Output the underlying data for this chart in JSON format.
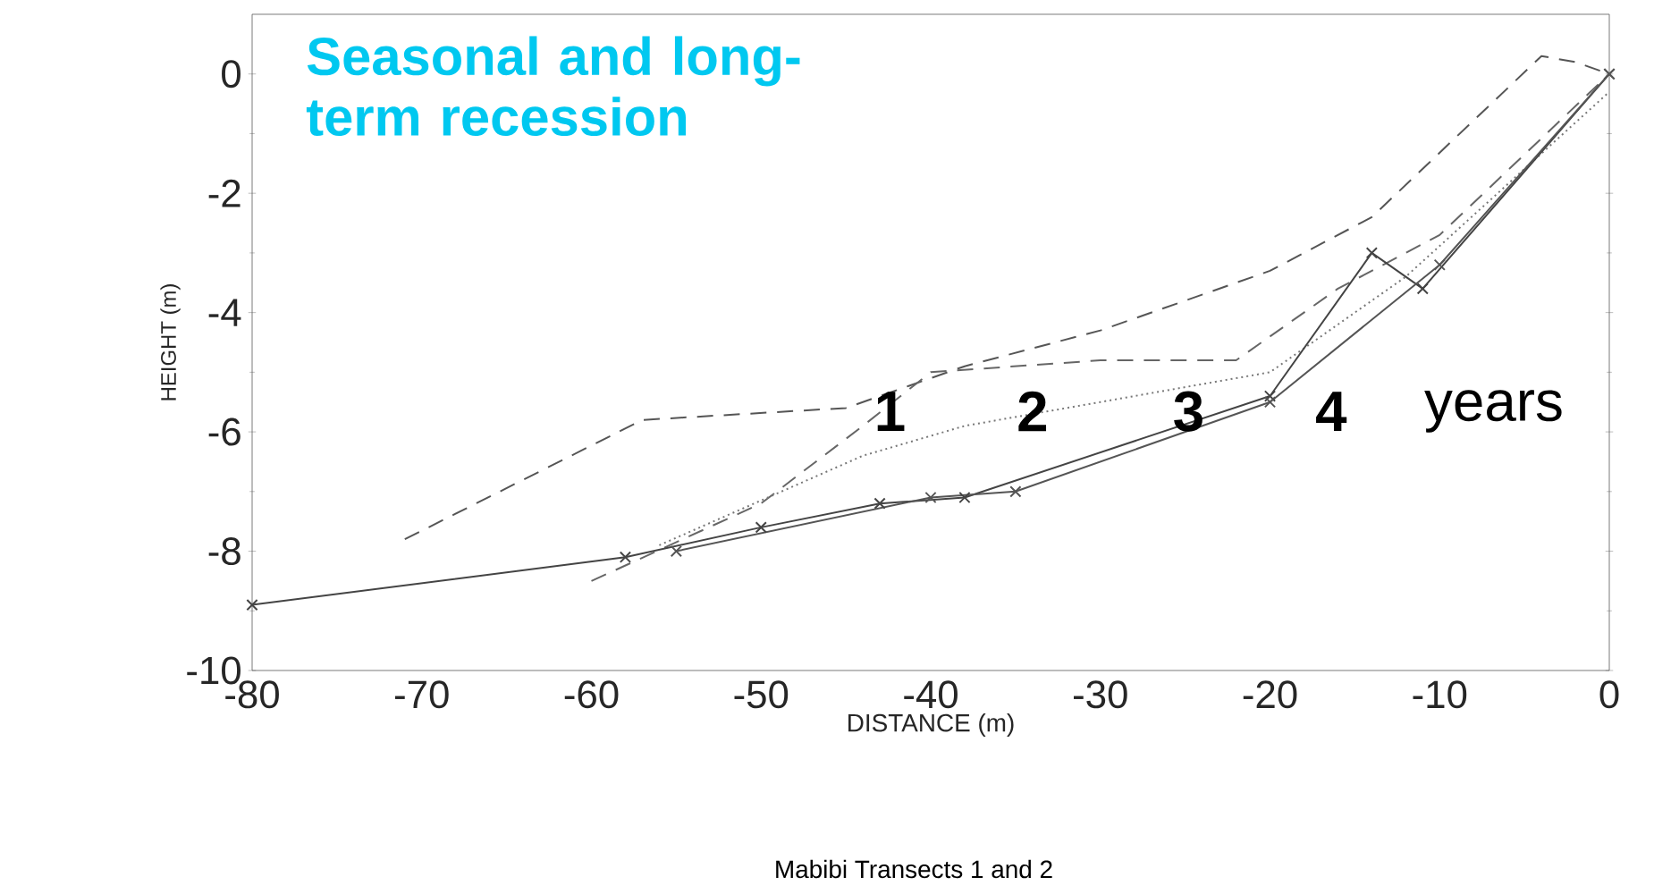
{
  "chart_data": {
    "type": "line",
    "title": "Seasonal and long-term recession",
    "xlabel": "DISTANCE (m)",
    "ylabel": "HEIGHT (m)",
    "xlim": [
      -80,
      0
    ],
    "ylim": [
      -10,
      1
    ],
    "xticks": [
      -80,
      -70,
      -60,
      -50,
      -40,
      -30,
      -20,
      -10,
      0
    ],
    "yticks": [
      -10,
      -8,
      -6,
      -4,
      -2,
      0
    ],
    "grid": false,
    "series": [
      {
        "color": "#555555",
        "line_style": "dashed",
        "marker": "none",
        "x": [
          -71,
          -57,
          -45,
          -38,
          -30,
          -20,
          -14,
          -4,
          -2,
          0
        ],
        "values": [
          -7.8,
          -5.8,
          -5.6,
          -4.9,
          -4.3,
          -3.3,
          -2.4,
          0.3,
          0.2,
          0
        ]
      },
      {
        "color": "#666666",
        "line_style": "dashed",
        "marker": "none",
        "x": [
          -60,
          -50,
          -44,
          -40,
          -30,
          -22,
          -16,
          -10,
          0
        ],
        "values": [
          -8.5,
          -7.2,
          -5.9,
          -5.0,
          -4.8,
          -4.8,
          -3.6,
          -2.7,
          0
        ]
      },
      {
        "color": "#777777",
        "line_style": "dotted",
        "marker": "none",
        "x": [
          -56,
          -44,
          -38,
          -30,
          -20,
          -12,
          0
        ],
        "values": [
          -7.9,
          -6.4,
          -5.9,
          -5.5,
          -5.0,
          -3.4,
          -0.3
        ]
      },
      {
        "color": "#444444",
        "line_style": "solid",
        "marker": "cross",
        "x": [
          -80,
          -58,
          -50,
          -43,
          -38,
          -20,
          -14,
          -11,
          0
        ],
        "values": [
          -8.9,
          -8.1,
          -7.6,
          -7.2,
          -7.1,
          -5.4,
          -3.0,
          -3.6,
          0
        ]
      },
      {
        "color": "#555555",
        "line_style": "solid",
        "marker": "cross",
        "x": [
          -55,
          -40,
          -35,
          -20,
          -10,
          0
        ],
        "values": [
          -8.0,
          -7.1,
          -7.0,
          -5.5,
          -3.2,
          0
        ]
      }
    ],
    "annotations": [
      "1",
      "2",
      "3",
      "4",
      "years",
      "Mabibi Transects 1 and 2"
    ]
  }
}
